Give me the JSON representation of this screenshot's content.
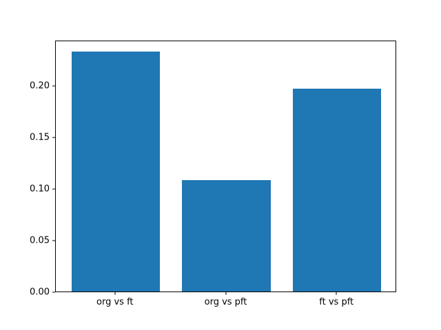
{
  "chart_data": {
    "type": "bar",
    "categories": [
      "org vs ft",
      "org vs pft",
      "ft vs pft"
    ],
    "values": [
      0.233,
      0.108,
      0.197
    ],
    "title": "",
    "xlabel": "",
    "ylabel": "",
    "ytick_labels": [
      "0.00",
      "0.05",
      "0.10",
      "0.15",
      "0.20"
    ],
    "ytick_values": [
      0.0,
      0.05,
      0.1,
      0.15,
      0.2
    ],
    "ylim": [
      0,
      0.244
    ],
    "xlim": [
      -0.54,
      2.54
    ],
    "bar_width": 0.8,
    "bar_color": "#1f77b4",
    "axis_color": "#000000",
    "background_color": "#ffffff",
    "grid": false,
    "legend": false
  }
}
